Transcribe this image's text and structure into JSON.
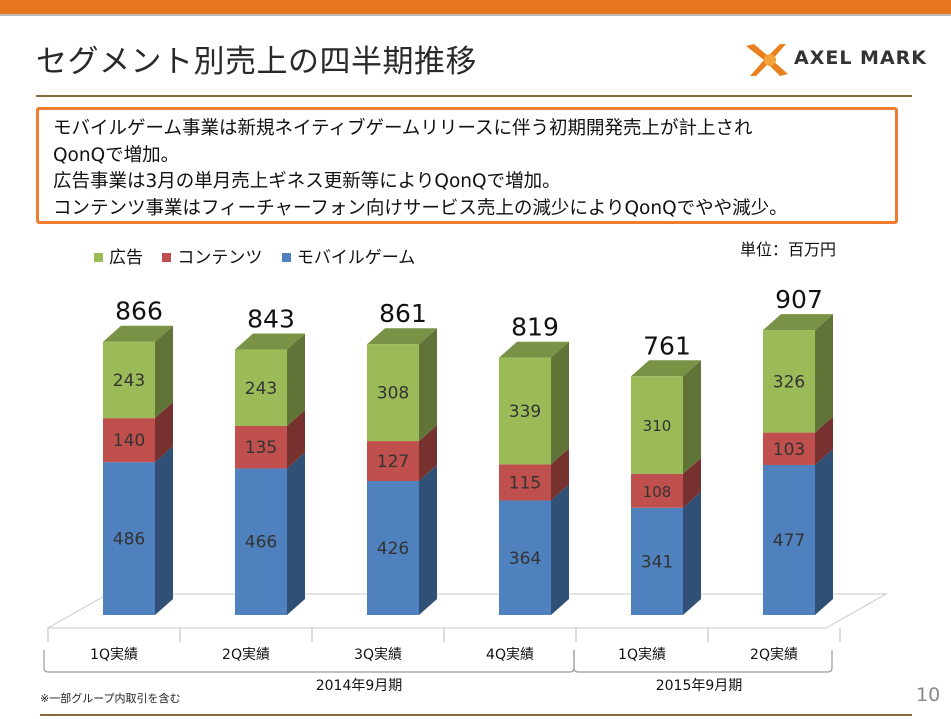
{
  "header": {
    "title": "セグメント別売上の四半期推移",
    "logo_text": "AXEL MARK"
  },
  "summary": {
    "lines": [
      "モバイルゲーム事業は新規ネイティブゲームリリースに伴う初期開発売上が計上され",
      "QonQで増加。",
      "広告事業は3月の単月売上ギネス更新等によりQonQで増加。",
      "コンテンツ事業はフィーチャーフォン向けサービス売上の減少によりQonQでやや減少。"
    ]
  },
  "unit_label": "単位：百万円",
  "footnote": "※一部グループ内取引を含む",
  "page_number": "10",
  "colors": {
    "accent": "#e7741f",
    "mobile_game": "#4e81bd",
    "contents": "#c0504d",
    "advertising": "#9bbb59"
  },
  "chart_data": {
    "type": "bar",
    "stacked": true,
    "categories": [
      "1Q実績",
      "2Q実績",
      "3Q実績",
      "4Q実績",
      "1Q実績",
      "2Q実績"
    ],
    "groups": [
      {
        "label": "2014年9月期",
        "categories": [
          0,
          1,
          2,
          3
        ]
      },
      {
        "label": "2015年9月期",
        "categories": [
          4,
          5
        ]
      }
    ],
    "series": [
      {
        "name": "モバイルゲーム",
        "color": "#4e81bd",
        "values": [
          486,
          466,
          426,
          364,
          341,
          477
        ]
      },
      {
        "name": "コンテンツ",
        "color": "#c0504d",
        "values": [
          140,
          135,
          127,
          115,
          108,
          103
        ]
      },
      {
        "name": "広告",
        "color": "#9bbb59",
        "values": [
          243,
          243,
          308,
          339,
          310,
          326
        ]
      }
    ],
    "totals": [
      866,
      843,
      861,
      819,
      761,
      907
    ],
    "legend_order": [
      "広告",
      "コンテンツ",
      "モバイルゲーム"
    ],
    "legend_position": "top-left",
    "ylim": [
      0,
      1000
    ]
  }
}
